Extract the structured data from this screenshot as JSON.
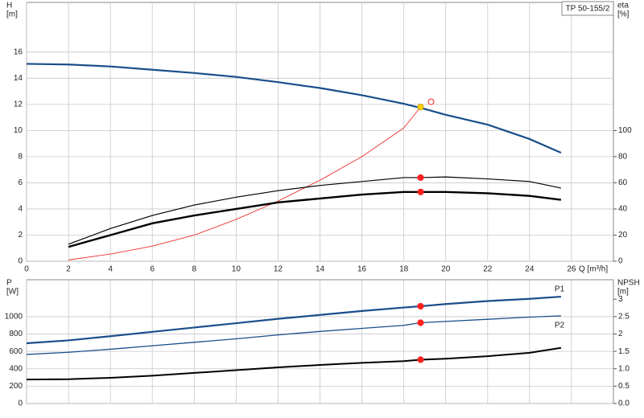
{
  "chart_data": [
    {
      "type": "line",
      "title": "TP 50-155/2",
      "ylabel": [
        "H",
        "[m]"
      ],
      "y2label": [
        "eta",
        "[%]"
      ],
      "xlabel": "Q [m³/h]",
      "xlim": [
        0,
        28
      ],
      "xticks": [
        0,
        2,
        4,
        6,
        8,
        10,
        12,
        14,
        16,
        18,
        20,
        22,
        24,
        26
      ],
      "ylim": [
        0,
        19.8
      ],
      "yticks": [
        0,
        2,
        4,
        6,
        8,
        10,
        12,
        14,
        16
      ],
      "y2lim": [
        0,
        198
      ],
      "y2ticks": [
        0,
        20,
        40,
        60,
        80,
        100
      ],
      "grid": true,
      "series": [
        {
          "color": "#1a4e8a",
          "line_width": 2.2,
          "x": [
            0,
            2,
            4,
            6,
            8,
            10,
            12,
            14,
            16,
            18,
            19,
            20,
            22,
            24,
            25.5
          ],
          "values": [
            15.1,
            15.05,
            14.9,
            14.65,
            14.4,
            14.1,
            13.7,
            13.25,
            12.7,
            12.05,
            11.65,
            11.2,
            10.45,
            9.35,
            8.3
          ]
        },
        {
          "color": "#f03030",
          "line_width": 0.9,
          "axis": "y2",
          "x": [
            2,
            4,
            6,
            8,
            10,
            12,
            14,
            16,
            18,
            18.8
          ],
          "values": [
            1,
            5.5,
            11.6,
            20,
            32,
            46,
            62,
            80,
            102,
            118
          ]
        },
        {
          "color": "#000000",
          "line_width": 1.2,
          "axis": "y2",
          "x": [
            2,
            4,
            6,
            8,
            10,
            12,
            14,
            16,
            18,
            18.8,
            20,
            22,
            24,
            25.5
          ],
          "values": [
            13,
            25,
            35,
            43,
            49,
            54,
            58,
            61,
            64,
            64,
            64.5,
            63,
            61,
            56
          ]
        },
        {
          "color": "#000000",
          "line_width": 2.4,
          "axis": "y2",
          "x": [
            2,
            4,
            6,
            8,
            10,
            12,
            14,
            16,
            18,
            18.8,
            20,
            22,
            24,
            25.5
          ],
          "values": [
            11,
            20,
            29,
            35,
            40,
            45,
            48,
            51,
            53,
            53,
            53,
            52,
            50,
            47
          ]
        }
      ],
      "markers": [
        {
          "x": 18.8,
          "y": 11.8,
          "color": "#ffd700"
        },
        {
          "x": 18.8,
          "y": 64,
          "axis": "y2",
          "color": "#ff2020"
        },
        {
          "x": 18.8,
          "y": 53,
          "axis": "y2",
          "color": "#ff2020"
        },
        {
          "x": 19.3,
          "y": 12.2,
          "color": "#ff2020",
          "hollow": true
        }
      ]
    },
    {
      "type": "line",
      "ylabel": [
        "P",
        "[W]"
      ],
      "y2label": [
        "NPSH",
        "[m]"
      ],
      "xlim": [
        0,
        28
      ],
      "xticks": [
        0,
        2,
        4,
        6,
        8,
        10,
        12,
        14,
        16,
        18,
        20,
        22,
        24,
        26
      ],
      "ylim": [
        0,
        1425
      ],
      "yticks": [
        0,
        200,
        400,
        600,
        800,
        1000
      ],
      "y2lim": [
        0,
        3.56
      ],
      "y2ticks": [
        {
          "value": 0,
          "label": "0.0"
        },
        0.5,
        {
          "value": 1,
          "label": "1.0"
        },
        1.5,
        2,
        2.5,
        3
      ],
      "grid": true,
      "series": [
        {
          "name": "P1",
          "color": "#1a4e8a",
          "line_width": 2.2,
          "x": [
            0,
            2,
            4,
            6,
            8,
            10,
            12,
            14,
            16,
            18,
            18.8,
            20,
            22,
            24,
            25.5
          ],
          "values": [
            694,
            727,
            775,
            825,
            875,
            925,
            975,
            1020,
            1065,
            1105,
            1120,
            1145,
            1180,
            1205,
            1230
          ]
        },
        {
          "name": "P2",
          "color": "#1a4e8a",
          "line_width": 1.3,
          "x": [
            0,
            2,
            4,
            6,
            8,
            10,
            12,
            14,
            16,
            18,
            18.8,
            20,
            22,
            24,
            25.5
          ],
          "values": [
            565,
            590,
            625,
            665,
            705,
            745,
            790,
            830,
            865,
            900,
            930,
            945,
            970,
            995,
            1010
          ]
        },
        {
          "color": "#000000",
          "line_width": 2,
          "axis": "y2",
          "x": [
            0,
            2,
            4,
            6,
            8,
            10,
            12,
            14,
            16,
            18,
            18.8,
            20,
            22,
            24,
            25.5
          ],
          "values": [
            0.69,
            0.7,
            0.74,
            0.8,
            0.88,
            0.96,
            1.04,
            1.11,
            1.17,
            1.22,
            1.26,
            1.29,
            1.36,
            1.46,
            1.6
          ]
        }
      ],
      "markers": [
        {
          "x": 18.8,
          "y": 1120,
          "color": "#ff2020"
        },
        {
          "x": 18.8,
          "y": 930,
          "color": "#ff2020"
        },
        {
          "x": 18.8,
          "y": 1.26,
          "axis": "y2",
          "color": "#ff2020"
        }
      ]
    }
  ]
}
